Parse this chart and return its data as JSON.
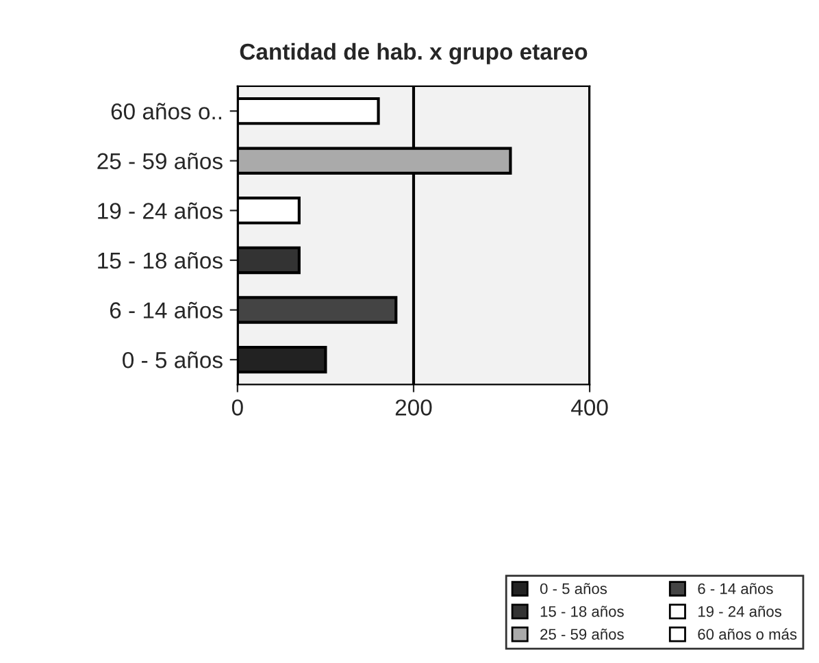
{
  "chart_data": {
    "type": "bar",
    "orientation": "horizontal",
    "stacked": true,
    "title": "Cantidad de hab. x grupo etareo",
    "categories": [
      "60 años o..",
      "25 - 59 años",
      "19 - 24 años",
      "15 - 18 años",
      "6 - 14 años",
      "0 - 5 años"
    ],
    "series": [
      {
        "name": "0 - 5 años",
        "color": "#222222",
        "values": [
          null,
          null,
          null,
          null,
          null,
          100
        ]
      },
      {
        "name": "6 - 14 años",
        "color": "#444444",
        "values": [
          null,
          null,
          null,
          null,
          180,
          null
        ]
      },
      {
        "name": "15 - 18 años",
        "color": "#333333",
        "values": [
          null,
          null,
          null,
          70,
          null,
          null
        ]
      },
      {
        "name": "19 - 24 años",
        "color": "#ffffff",
        "values": [
          null,
          null,
          70,
          null,
          null,
          null
        ]
      },
      {
        "name": "25 - 59 años",
        "color": "#aaaaaa",
        "values": [
          null,
          310,
          null,
          null,
          null,
          null
        ]
      },
      {
        "name": "60 años o más",
        "color": "#ffffff",
        "values": [
          160,
          null,
          null,
          null,
          null,
          null
        ]
      }
    ],
    "xlim": [
      0,
      400
    ],
    "xticks": [
      0,
      200,
      400
    ],
    "grid": "x",
    "legend": "bottom right"
  }
}
